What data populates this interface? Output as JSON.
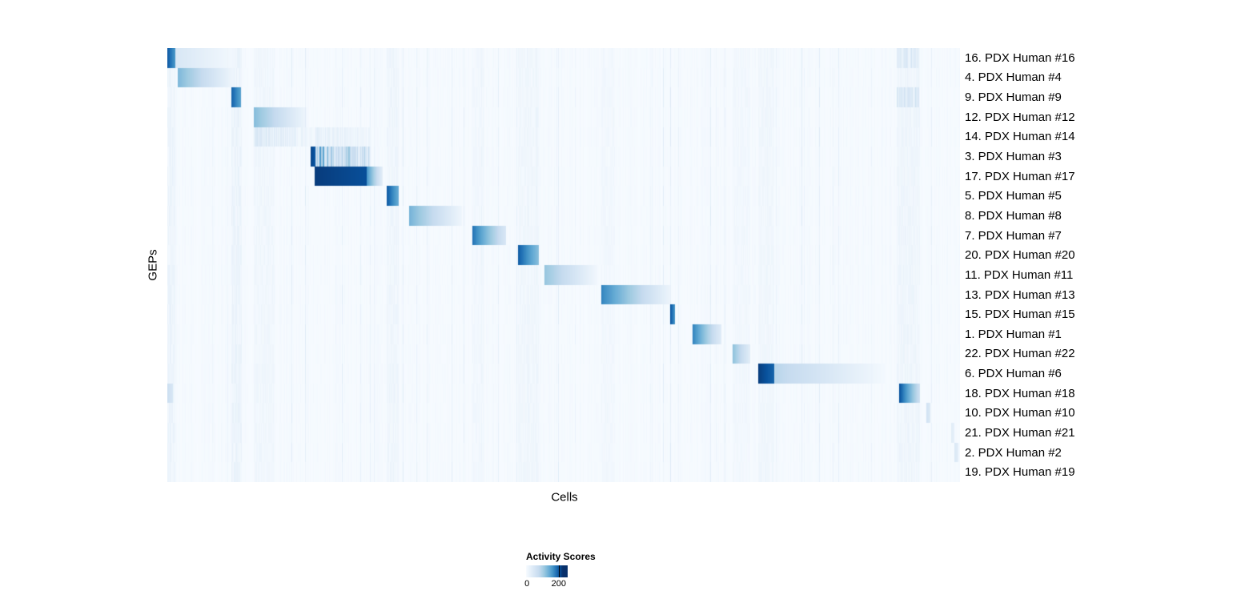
{
  "figure": {
    "background": "#ffffff"
  },
  "chart_data": {
    "type": "heatmap",
    "title": "",
    "xlabel": "Cells",
    "ylabel": "GEPs",
    "legend": {
      "title": "Activity Scores",
      "min_label": "0",
      "max_label": "200",
      "min": 0,
      "max": 200,
      "bar_max": 255,
      "tick_value": 200
    },
    "color_stops": [
      [
        0,
        "#f7fbff"
      ],
      [
        40,
        "#deebf7"
      ],
      [
        80,
        "#c6dbef"
      ],
      [
        110,
        "#9ecae1"
      ],
      [
        140,
        "#6baed6"
      ],
      [
        165,
        "#4292c6"
      ],
      [
        185,
        "#2171b5"
      ],
      [
        205,
        "#08519c"
      ],
      [
        225,
        "#08306b"
      ]
    ],
    "ghost_bands": [
      {
        "start": 0.0,
        "end": 0.01,
        "v": 14
      },
      {
        "start": 0.081,
        "end": 0.094,
        "v": 16
      },
      {
        "start": 0.109,
        "end": 0.135,
        "v": 10
      },
      {
        "start": 0.277,
        "end": 0.292,
        "v": 12
      },
      {
        "start": 0.385,
        "end": 0.4,
        "v": 8
      },
      {
        "start": 0.442,
        "end": 0.469,
        "v": 10
      },
      {
        "start": 0.547,
        "end": 0.565,
        "v": 8
      },
      {
        "start": 0.713,
        "end": 0.735,
        "v": 8
      },
      {
        "start": 0.745,
        "end": 0.766,
        "v": 10
      },
      {
        "start": 0.92,
        "end": 0.949,
        "v": 12
      }
    ],
    "rows": [
      {
        "label": "16. PDX Human #16",
        "segments": [
          {
            "start": 0.0,
            "end": 0.01,
            "v0": 200,
            "v1": 160
          },
          {
            "start": 0.01,
            "end": 0.082,
            "v0": 50,
            "v1": 8
          },
          {
            "start": 0.92,
            "end": 0.948,
            "v0": 38,
            "v1": 38,
            "noise": true
          }
        ]
      },
      {
        "label": "4. PDX Human #4",
        "segments": [
          {
            "start": 0.013,
            "end": 0.084,
            "v0": 130,
            "v1": 12
          }
        ]
      },
      {
        "label": "9. PDX Human #9",
        "segments": [
          {
            "start": 0.081,
            "end": 0.093,
            "v0": 195,
            "v1": 150
          },
          {
            "start": 0.92,
            "end": 0.948,
            "v0": 48,
            "v1": 48,
            "noise": true
          }
        ]
      },
      {
        "label": "12. PDX Human #12",
        "segments": [
          {
            "start": 0.109,
            "end": 0.176,
            "v0": 125,
            "v1": 12
          }
        ]
      },
      {
        "label": "14. PDX Human #14",
        "segments": [
          {
            "start": 0.109,
            "end": 0.185,
            "v0": 42,
            "v1": 12,
            "noise": true
          },
          {
            "start": 0.186,
            "end": 0.256,
            "v0": 26,
            "v1": 14,
            "noise": true
          }
        ]
      },
      {
        "label": "3. PDX Human #3",
        "segments": [
          {
            "start": 0.181,
            "end": 0.187,
            "v0": 212,
            "v1": 200
          },
          {
            "start": 0.187,
            "end": 0.256,
            "v0": 115,
            "v1": 60,
            "noise": true
          }
        ]
      },
      {
        "label": "17. PDX Human #17",
        "segments": [
          {
            "start": 0.186,
            "end": 0.252,
            "v0": 218,
            "v1": 206
          },
          {
            "start": 0.252,
            "end": 0.272,
            "v0": 160,
            "v1": 28
          }
        ]
      },
      {
        "label": "5. PDX Human #5",
        "segments": [
          {
            "start": 0.277,
            "end": 0.292,
            "v0": 200,
            "v1": 140
          }
        ]
      },
      {
        "label": "8. PDX Human #8",
        "segments": [
          {
            "start": 0.305,
            "end": 0.372,
            "v0": 135,
            "v1": 12
          }
        ]
      },
      {
        "label": "7. PDX Human #7",
        "segments": [
          {
            "start": 0.385,
            "end": 0.427,
            "v0": 185,
            "v1": 50
          }
        ]
      },
      {
        "label": "20. PDX Human #20",
        "segments": [
          {
            "start": 0.442,
            "end": 0.469,
            "v0": 200,
            "v1": 120
          }
        ]
      },
      {
        "label": "11. PDX Human #11",
        "segments": [
          {
            "start": 0.476,
            "end": 0.542,
            "v0": 115,
            "v1": 10
          }
        ]
      },
      {
        "label": "13. PDX Human #13",
        "segments": [
          {
            "start": 0.547,
            "end": 0.635,
            "v0": 175,
            "v1": 15
          }
        ]
      },
      {
        "label": "15. PDX Human #15",
        "segments": [
          {
            "start": 0.634,
            "end": 0.64,
            "v0": 205,
            "v1": 165
          }
        ]
      },
      {
        "label": "1. PDX Human #1",
        "segments": [
          {
            "start": 0.663,
            "end": 0.699,
            "v0": 175,
            "v1": 35
          }
        ]
      },
      {
        "label": "22. PDX Human #22",
        "segments": [
          {
            "start": 0.713,
            "end": 0.735,
            "v0": 122,
            "v1": 35
          }
        ]
      },
      {
        "label": "6. PDX Human #6",
        "segments": [
          {
            "start": 0.745,
            "end": 0.766,
            "v0": 218,
            "v1": 192
          },
          {
            "start": 0.766,
            "end": 0.905,
            "v0": 90,
            "v1": 6
          }
        ]
      },
      {
        "label": "18. PDX Human #18",
        "segments": [
          {
            "start": 0.0,
            "end": 0.007,
            "v0": 70,
            "v1": 50
          },
          {
            "start": 0.923,
            "end": 0.949,
            "v0": 208,
            "v1": 70
          }
        ]
      },
      {
        "label": "10. PDX Human #10",
        "segments": [
          {
            "start": 0.958,
            "end": 0.963,
            "v0": 60,
            "v1": 40
          }
        ]
      },
      {
        "label": "21. PDX Human #21",
        "segments": [
          {
            "start": 0.989,
            "end": 0.993,
            "v0": 35,
            "v1": 25
          }
        ]
      },
      {
        "label": "2. PDX Human #2",
        "segments": [
          {
            "start": 0.993,
            "end": 0.998,
            "v0": 48,
            "v1": 30
          }
        ]
      },
      {
        "label": "19. PDX Human #19",
        "segments": []
      }
    ]
  }
}
